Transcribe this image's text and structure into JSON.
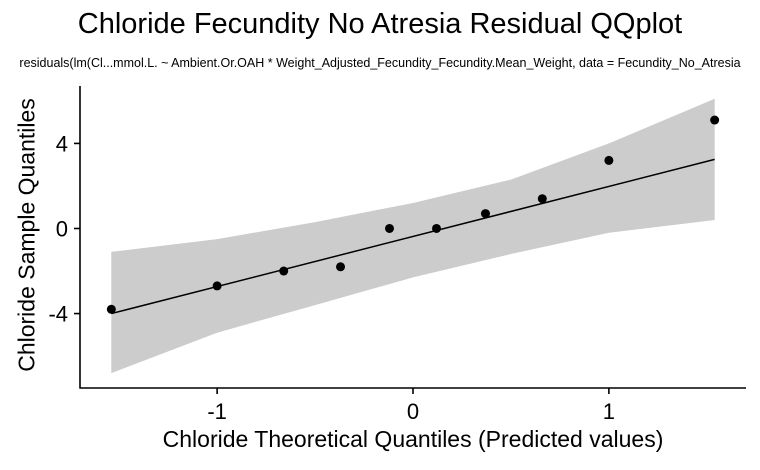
{
  "chart_data": {
    "type": "scatter",
    "title": "Chloride Fecundity No Atresia Residual QQplot",
    "subtitle": "residuals(lm(Cl...mmol.L. ~ Ambient.Or.OAH * Weight_Adjusted_Fecundity_Fecundity.Mean_Weight, data = Fecundity_No_Atresia",
    "xlabel": "Chloride Theoretical Quantiles (Predicted values)",
    "ylabel": "Chloride Sample Quantiles",
    "xlim": [
      -1.7,
      1.7
    ],
    "ylim": [
      -7.5,
      6.7
    ],
    "xticks": [
      -1,
      0,
      1
    ],
    "yticks": [
      -4,
      0,
      4
    ],
    "xtick_labels": [
      "-1",
      "0",
      "1"
    ],
    "ytick_labels": [
      "-4",
      "0",
      "4"
    ],
    "grid": false,
    "colors": {
      "points": "#000000",
      "line": "#000000",
      "band": "#cccccc"
    },
    "points": {
      "x": [
        -1.54,
        -1.0,
        -0.66,
        -0.37,
        -0.12,
        0.12,
        0.37,
        0.66,
        1.0,
        1.54
      ],
      "y": [
        -3.8,
        -2.7,
        -2.0,
        -1.8,
        0.0,
        0.0,
        0.7,
        1.4,
        3.2,
        5.1
      ]
    },
    "reference_line": {
      "x": [
        -1.54,
        1.54
      ],
      "y": [
        -4.0,
        3.25
      ]
    },
    "confidence_band": {
      "x": [
        -1.54,
        -1.0,
        -0.5,
        0.0,
        0.5,
        1.0,
        1.54
      ],
      "lower": [
        -6.8,
        -4.9,
        -3.6,
        -2.3,
        -1.2,
        -0.2,
        0.4
      ],
      "upper": [
        -1.1,
        -0.5,
        0.3,
        1.2,
        2.3,
        4.0,
        6.1
      ]
    }
  }
}
